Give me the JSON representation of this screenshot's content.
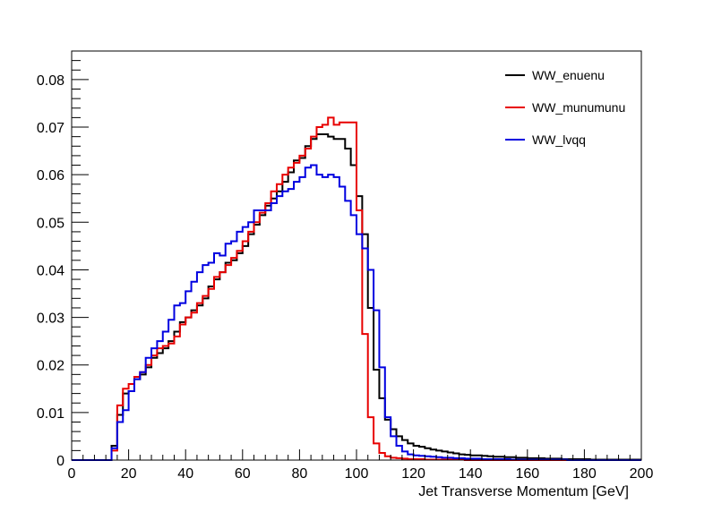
{
  "chart_data": {
    "type": "line",
    "title": "",
    "xlabel": "Jet Transverse Momentum [GeV]",
    "ylabel": "",
    "xlim": [
      0,
      200
    ],
    "ylim": [
      0,
      0.086
    ],
    "x_ticks": [
      0,
      20,
      40,
      60,
      80,
      100,
      120,
      140,
      160,
      180,
      200
    ],
    "y_ticks": [
      0,
      0.01,
      0.02,
      0.03,
      0.04,
      0.05,
      0.06,
      0.07,
      0.08
    ],
    "x_tick_labels": [
      "0",
      "20",
      "40",
      "60",
      "80",
      "100",
      "120",
      "140",
      "160",
      "180",
      "200"
    ],
    "y_tick_labels": [
      "0",
      "0.01",
      "0.02",
      "0.03",
      "0.04",
      "0.05",
      "0.06",
      "0.07",
      "0.08"
    ],
    "grid": false,
    "legend_position": "top-right",
    "bin_width": 2,
    "series": [
      {
        "name": "WW_enuenu",
        "color": "#000000",
        "values": [
          0,
          0,
          0,
          0,
          0,
          0,
          0,
          0.003,
          0.0095,
          0.014,
          0.0145,
          0.017,
          0.018,
          0.0195,
          0.0215,
          0.0225,
          0.0235,
          0.025,
          0.027,
          0.029,
          0.03,
          0.0315,
          0.0325,
          0.034,
          0.0365,
          0.038,
          0.0395,
          0.0415,
          0.042,
          0.0435,
          0.045,
          0.0475,
          0.0495,
          0.0515,
          0.0535,
          0.055,
          0.0565,
          0.0585,
          0.0605,
          0.063,
          0.0635,
          0.066,
          0.0675,
          0.0685,
          0.0685,
          0.068,
          0.0675,
          0.0675,
          0.0655,
          0.062,
          0.0555,
          0.0475,
          0.032,
          0.019,
          0.013,
          0.0085,
          0.0065,
          0.005,
          0.0042,
          0.0035,
          0.003,
          0.0028,
          0.0025,
          0.0022,
          0.002,
          0.0018,
          0.0016,
          0.0014,
          0.0012,
          0.0011,
          0.001,
          0.001,
          0.0009,
          0.0008,
          0.0007,
          0.0007,
          0.0006,
          0.0006,
          0.0005,
          0.0005,
          0.0004,
          0.0004,
          0.0004,
          0.0003,
          0.0003,
          0.0003,
          0.0002,
          0.0002,
          0.0002,
          0.0002,
          0.0002,
          0.0001,
          0.0001,
          0.0001,
          0.0001,
          0.0001,
          0.0001,
          0.0001,
          0.0001,
          0.0001
        ]
      },
      {
        "name": "WW_munumunu",
        "color": "#e80000",
        "values": [
          0,
          0,
          0,
          0,
          0,
          0,
          0,
          0.002,
          0.0115,
          0.015,
          0.016,
          0.0175,
          0.0185,
          0.02,
          0.022,
          0.0235,
          0.024,
          0.0245,
          0.026,
          0.0285,
          0.03,
          0.031,
          0.033,
          0.0345,
          0.036,
          0.0385,
          0.0395,
          0.041,
          0.0425,
          0.044,
          0.046,
          0.048,
          0.05,
          0.052,
          0.054,
          0.0565,
          0.058,
          0.06,
          0.0615,
          0.0625,
          0.064,
          0.0655,
          0.068,
          0.07,
          0.0705,
          0.072,
          0.0705,
          0.071,
          0.071,
          0.071,
          0.0525,
          0.0265,
          0.009,
          0.0035,
          0.0015,
          0.0008,
          0.0005,
          0.0004,
          0.0003,
          0.0002,
          0.0002,
          0.0002,
          0.0001,
          0.0001,
          0.0001,
          0.0001,
          0.0001,
          0.0001,
          0.0001,
          0,
          0,
          0,
          0,
          0,
          0,
          0,
          0,
          0,
          0,
          0,
          0,
          0,
          0,
          0,
          0,
          0,
          0,
          0,
          0,
          0,
          0,
          0,
          0,
          0,
          0,
          0,
          0,
          0,
          0,
          0
        ]
      },
      {
        "name": "WW_lvqq",
        "color": "#0000e0",
        "values": [
          0,
          0,
          0,
          0,
          0,
          0,
          0,
          0.0025,
          0.008,
          0.0105,
          0.0145,
          0.017,
          0.0185,
          0.0215,
          0.0235,
          0.025,
          0.027,
          0.0295,
          0.0325,
          0.033,
          0.0355,
          0.0375,
          0.0395,
          0.041,
          0.0415,
          0.0435,
          0.043,
          0.0455,
          0.046,
          0.048,
          0.049,
          0.05,
          0.0525,
          0.0525,
          0.0525,
          0.054,
          0.0555,
          0.0565,
          0.057,
          0.0585,
          0.0595,
          0.0615,
          0.062,
          0.06,
          0.0595,
          0.06,
          0.0595,
          0.0575,
          0.0545,
          0.0515,
          0.0475,
          0.0445,
          0.04,
          0.0315,
          0.0195,
          0.009,
          0.005,
          0.003,
          0.0018,
          0.0012,
          0.001,
          0.0009,
          0.0008,
          0.0007,
          0.0006,
          0.0005,
          0.0005,
          0.0004,
          0.0004,
          0.0003,
          0.0003,
          0.0003,
          0.0002,
          0.0002,
          0.0002,
          0.0002,
          0.0002,
          0.0001,
          0.0001,
          0.0001,
          0.0001,
          0.0001,
          0.0001,
          0.0001,
          0.0001,
          0.0001,
          0.0001,
          0,
          0,
          0,
          0,
          0,
          0,
          0,
          0,
          0,
          0,
          0,
          0,
          0
        ]
      }
    ]
  }
}
